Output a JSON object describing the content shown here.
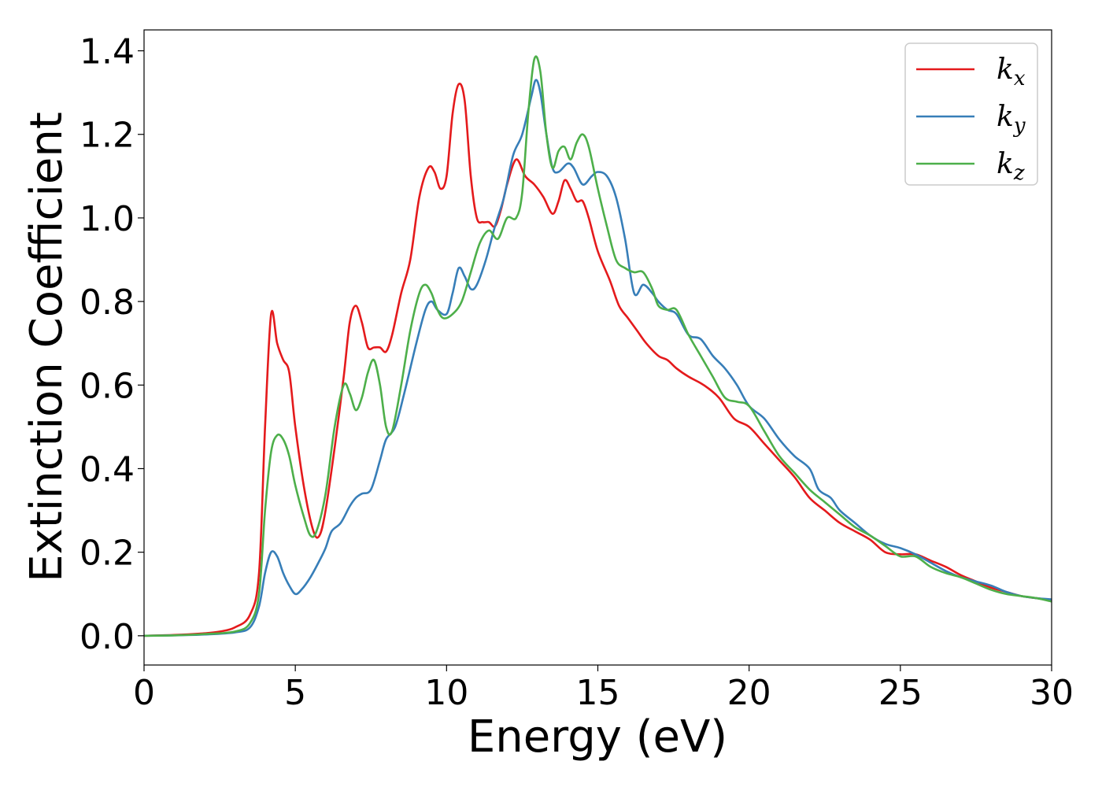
{
  "chart_data": {
    "type": "line",
    "title": "",
    "xlabel": "Energy (eV)",
    "ylabel": "Extinction Coefficient",
    "xlim": [
      0,
      30
    ],
    "ylim": [
      -0.07,
      1.45
    ],
    "xticks": [
      0,
      5,
      10,
      15,
      20,
      25,
      30
    ],
    "xtick_labels": [
      "0",
      "5",
      "10",
      "15",
      "20",
      "25",
      "30"
    ],
    "yticks": [
      0.0,
      0.2,
      0.4,
      0.6,
      0.8,
      1.0,
      1.2,
      1.4
    ],
    "ytick_labels": [
      "0.0",
      "0.2",
      "0.4",
      "0.6",
      "0.8",
      "1.0",
      "1.2",
      "1.4"
    ],
    "grid": false,
    "legend_position": "top-right",
    "series": [
      {
        "name": "k",
        "subscript": "x",
        "color": "#e41a1c",
        "points": [
          [
            0,
            0
          ],
          [
            1,
            0.002
          ],
          [
            2,
            0.006
          ],
          [
            2.5,
            0.01
          ],
          [
            3,
            0.02
          ],
          [
            3.5,
            0.05
          ],
          [
            3.8,
            0.15
          ],
          [
            4.0,
            0.5
          ],
          [
            4.2,
            0.77
          ],
          [
            4.4,
            0.7
          ],
          [
            4.6,
            0.66
          ],
          [
            4.8,
            0.63
          ],
          [
            5.0,
            0.5
          ],
          [
            5.3,
            0.35
          ],
          [
            5.6,
            0.25
          ],
          [
            5.8,
            0.24
          ],
          [
            6.0,
            0.3
          ],
          [
            6.3,
            0.45
          ],
          [
            6.6,
            0.62
          ],
          [
            6.8,
            0.75
          ],
          [
            7.0,
            0.79
          ],
          [
            7.2,
            0.75
          ],
          [
            7.4,
            0.69
          ],
          [
            7.6,
            0.69
          ],
          [
            7.8,
            0.69
          ],
          [
            8.0,
            0.68
          ],
          [
            8.2,
            0.72
          ],
          [
            8.5,
            0.82
          ],
          [
            8.8,
            0.9
          ],
          [
            9.1,
            1.05
          ],
          [
            9.4,
            1.12
          ],
          [
            9.6,
            1.11
          ],
          [
            9.8,
            1.07
          ],
          [
            10.0,
            1.1
          ],
          [
            10.2,
            1.25
          ],
          [
            10.4,
            1.32
          ],
          [
            10.6,
            1.28
          ],
          [
            10.8,
            1.1
          ],
          [
            11.0,
            1.0
          ],
          [
            11.2,
            0.99
          ],
          [
            11.4,
            0.99
          ],
          [
            11.6,
            0.98
          ],
          [
            11.8,
            1.02
          ],
          [
            12.0,
            1.08
          ],
          [
            12.3,
            1.14
          ],
          [
            12.6,
            1.1
          ],
          [
            12.9,
            1.08
          ],
          [
            13.2,
            1.05
          ],
          [
            13.5,
            1.01
          ],
          [
            13.7,
            1.04
          ],
          [
            13.9,
            1.09
          ],
          [
            14.1,
            1.07
          ],
          [
            14.3,
            1.04
          ],
          [
            14.5,
            1.04
          ],
          [
            14.7,
            1.0
          ],
          [
            15.0,
            0.92
          ],
          [
            15.4,
            0.85
          ],
          [
            15.7,
            0.79
          ],
          [
            16.0,
            0.76
          ],
          [
            16.3,
            0.73
          ],
          [
            16.6,
            0.7
          ],
          [
            17.0,
            0.67
          ],
          [
            17.3,
            0.66
          ],
          [
            17.6,
            0.64
          ],
          [
            18.0,
            0.62
          ],
          [
            18.5,
            0.6
          ],
          [
            19.0,
            0.57
          ],
          [
            19.5,
            0.52
          ],
          [
            20.0,
            0.5
          ],
          [
            20.5,
            0.46
          ],
          [
            21.0,
            0.42
          ],
          [
            21.5,
            0.38
          ],
          [
            22.0,
            0.33
          ],
          [
            22.5,
            0.3
          ],
          [
            23.0,
            0.27
          ],
          [
            23.5,
            0.25
          ],
          [
            24.0,
            0.23
          ],
          [
            24.5,
            0.2
          ],
          [
            25.0,
            0.195
          ],
          [
            25.5,
            0.195
          ],
          [
            26.0,
            0.18
          ],
          [
            26.5,
            0.165
          ],
          [
            27.0,
            0.145
          ],
          [
            27.5,
            0.13
          ],
          [
            28.0,
            0.115
          ],
          [
            28.5,
            0.105
          ],
          [
            29.0,
            0.095
          ],
          [
            29.5,
            0.09
          ],
          [
            30.0,
            0.085
          ]
        ]
      },
      {
        "name": "k",
        "subscript": "y",
        "color": "#377eb8",
        "points": [
          [
            0,
            0
          ],
          [
            1,
            0.001
          ],
          [
            2,
            0.003
          ],
          [
            3,
            0.008
          ],
          [
            3.5,
            0.02
          ],
          [
            3.8,
            0.07
          ],
          [
            4.0,
            0.15
          ],
          [
            4.2,
            0.2
          ],
          [
            4.4,
            0.19
          ],
          [
            4.6,
            0.15
          ],
          [
            4.8,
            0.12
          ],
          [
            5.0,
            0.1
          ],
          [
            5.2,
            0.11
          ],
          [
            5.5,
            0.14
          ],
          [
            5.8,
            0.18
          ],
          [
            6.0,
            0.21
          ],
          [
            6.2,
            0.25
          ],
          [
            6.5,
            0.27
          ],
          [
            6.8,
            0.31
          ],
          [
            7.0,
            0.33
          ],
          [
            7.2,
            0.34
          ],
          [
            7.5,
            0.35
          ],
          [
            7.8,
            0.42
          ],
          [
            8.0,
            0.47
          ],
          [
            8.3,
            0.5
          ],
          [
            8.6,
            0.58
          ],
          [
            9.0,
            0.7
          ],
          [
            9.3,
            0.78
          ],
          [
            9.5,
            0.8
          ],
          [
            9.7,
            0.78
          ],
          [
            10.0,
            0.77
          ],
          [
            10.2,
            0.82
          ],
          [
            10.4,
            0.88
          ],
          [
            10.6,
            0.86
          ],
          [
            10.8,
            0.83
          ],
          [
            11.0,
            0.84
          ],
          [
            11.3,
            0.9
          ],
          [
            11.6,
            0.98
          ],
          [
            11.9,
            1.05
          ],
          [
            12.2,
            1.15
          ],
          [
            12.5,
            1.2
          ],
          [
            12.8,
            1.29
          ],
          [
            12.95,
            1.33
          ],
          [
            13.1,
            1.3
          ],
          [
            13.3,
            1.2
          ],
          [
            13.5,
            1.12
          ],
          [
            13.7,
            1.11
          ],
          [
            14.0,
            1.13
          ],
          [
            14.2,
            1.12
          ],
          [
            14.5,
            1.08
          ],
          [
            14.8,
            1.1
          ],
          [
            15.0,
            1.11
          ],
          [
            15.3,
            1.1
          ],
          [
            15.6,
            1.05
          ],
          [
            15.9,
            0.95
          ],
          [
            16.2,
            0.82
          ],
          [
            16.5,
            0.84
          ],
          [
            16.8,
            0.82
          ],
          [
            17.0,
            0.8
          ],
          [
            17.3,
            0.78
          ],
          [
            17.6,
            0.77
          ],
          [
            18.0,
            0.72
          ],
          [
            18.4,
            0.71
          ],
          [
            18.8,
            0.67
          ],
          [
            19.2,
            0.64
          ],
          [
            19.6,
            0.6
          ],
          [
            20.0,
            0.55
          ],
          [
            20.5,
            0.52
          ],
          [
            21.0,
            0.47
          ],
          [
            21.5,
            0.43
          ],
          [
            22.0,
            0.4
          ],
          [
            22.3,
            0.35
          ],
          [
            22.7,
            0.33
          ],
          [
            23.0,
            0.3
          ],
          [
            23.5,
            0.27
          ],
          [
            24.0,
            0.24
          ],
          [
            24.5,
            0.22
          ],
          [
            25.0,
            0.21
          ],
          [
            25.5,
            0.195
          ],
          [
            26.0,
            0.175
          ],
          [
            26.5,
            0.155
          ],
          [
            27.0,
            0.14
          ],
          [
            27.5,
            0.13
          ],
          [
            28.0,
            0.12
          ],
          [
            28.5,
            0.105
          ],
          [
            29.0,
            0.095
          ],
          [
            29.5,
            0.09
          ],
          [
            30.0,
            0.087
          ]
        ]
      },
      {
        "name": "k",
        "subscript": "z",
        "color": "#4daf4a",
        "points": [
          [
            0,
            0
          ],
          [
            1,
            0.001
          ],
          [
            2,
            0.004
          ],
          [
            3,
            0.01
          ],
          [
            3.5,
            0.03
          ],
          [
            3.8,
            0.1
          ],
          [
            4.0,
            0.3
          ],
          [
            4.2,
            0.44
          ],
          [
            4.4,
            0.48
          ],
          [
            4.6,
            0.47
          ],
          [
            4.8,
            0.43
          ],
          [
            5.0,
            0.36
          ],
          [
            5.3,
            0.28
          ],
          [
            5.5,
            0.24
          ],
          [
            5.7,
            0.25
          ],
          [
            6.0,
            0.34
          ],
          [
            6.3,
            0.5
          ],
          [
            6.6,
            0.6
          ],
          [
            6.8,
            0.58
          ],
          [
            7.0,
            0.54
          ],
          [
            7.2,
            0.57
          ],
          [
            7.4,
            0.63
          ],
          [
            7.6,
            0.66
          ],
          [
            7.8,
            0.6
          ],
          [
            8.0,
            0.5
          ],
          [
            8.2,
            0.49
          ],
          [
            8.5,
            0.6
          ],
          [
            8.8,
            0.73
          ],
          [
            9.1,
            0.82
          ],
          [
            9.3,
            0.84
          ],
          [
            9.5,
            0.82
          ],
          [
            9.7,
            0.78
          ],
          [
            9.9,
            0.76
          ],
          [
            10.2,
            0.77
          ],
          [
            10.5,
            0.8
          ],
          [
            10.8,
            0.87
          ],
          [
            11.1,
            0.94
          ],
          [
            11.4,
            0.97
          ],
          [
            11.7,
            0.95
          ],
          [
            12.0,
            1.0
          ],
          [
            12.3,
            1.0
          ],
          [
            12.5,
            1.06
          ],
          [
            12.7,
            1.25
          ],
          [
            12.9,
            1.38
          ],
          [
            13.1,
            1.35
          ],
          [
            13.3,
            1.2
          ],
          [
            13.5,
            1.12
          ],
          [
            13.7,
            1.16
          ],
          [
            13.9,
            1.17
          ],
          [
            14.1,
            1.14
          ],
          [
            14.3,
            1.18
          ],
          [
            14.5,
            1.2
          ],
          [
            14.7,
            1.17
          ],
          [
            15.0,
            1.07
          ],
          [
            15.3,
            0.98
          ],
          [
            15.6,
            0.9
          ],
          [
            15.9,
            0.88
          ],
          [
            16.2,
            0.87
          ],
          [
            16.5,
            0.87
          ],
          [
            16.8,
            0.83
          ],
          [
            17.0,
            0.79
          ],
          [
            17.3,
            0.78
          ],
          [
            17.6,
            0.78
          ],
          [
            18.0,
            0.72
          ],
          [
            18.4,
            0.67
          ],
          [
            18.8,
            0.62
          ],
          [
            19.2,
            0.57
          ],
          [
            19.6,
            0.56
          ],
          [
            20.0,
            0.55
          ],
          [
            20.5,
            0.49
          ],
          [
            21.0,
            0.43
          ],
          [
            21.5,
            0.39
          ],
          [
            22.0,
            0.35
          ],
          [
            22.5,
            0.32
          ],
          [
            23.0,
            0.29
          ],
          [
            23.5,
            0.26
          ],
          [
            24.0,
            0.24
          ],
          [
            24.5,
            0.215
          ],
          [
            25.0,
            0.19
          ],
          [
            25.5,
            0.19
          ],
          [
            26.0,
            0.165
          ],
          [
            26.5,
            0.15
          ],
          [
            27.0,
            0.14
          ],
          [
            27.5,
            0.125
          ],
          [
            28.0,
            0.11
          ],
          [
            28.5,
            0.1
          ],
          [
            29.0,
            0.095
          ],
          [
            29.5,
            0.09
          ],
          [
            30.0,
            0.082
          ]
        ]
      }
    ]
  }
}
